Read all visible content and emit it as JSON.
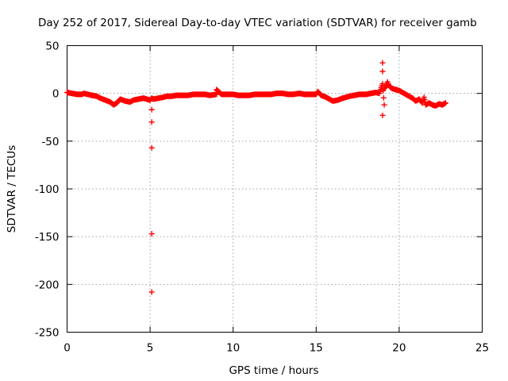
{
  "chart_data": {
    "type": "scatter",
    "title": "Day 252 of 2017, Sidereal Day-to-day VTEC variation (SDTVAR) for receiver gamb",
    "xlabel": "GPS time / hours",
    "ylabel": "SDTVAR / TECUs",
    "xlim": [
      0,
      25
    ],
    "ylim": [
      -250,
      50
    ],
    "xticks": [
      "0",
      "5",
      "10",
      "15",
      "20",
      "25"
    ],
    "yticks": [
      "50",
      "0",
      "-50",
      "-100",
      "-150",
      "-200",
      "-250"
    ],
    "grid": true,
    "series": [
      {
        "name": "SDTVAR",
        "color": "#ff0000",
        "marker": "plus",
        "x": [
          0.0,
          0.3,
          0.6,
          0.9,
          1.0,
          1.5,
          1.8,
          2.0,
          2.3,
          2.6,
          2.8,
          3.0,
          3.2,
          3.5,
          3.8,
          4.0,
          4.3,
          4.6,
          4.8,
          5.0,
          5.1,
          5.1,
          5.1,
          5.1,
          5.1,
          5.1,
          5.2,
          5.5,
          5.8,
          6.0,
          6.3,
          6.6,
          7.0,
          7.3,
          7.6,
          8.0,
          8.3,
          8.6,
          9.0,
          9.0,
          9.3,
          9.6,
          10.0,
          10.3,
          10.6,
          11.0,
          11.3,
          11.6,
          12.0,
          12.3,
          12.6,
          13.0,
          13.3,
          13.6,
          14.0,
          14.3,
          14.6,
          15.0,
          15.1,
          15.3,
          15.6,
          15.8,
          16.0,
          16.3,
          16.6,
          17.0,
          17.3,
          17.6,
          18.0,
          18.3,
          18.6,
          18.8,
          19.0,
          19.0,
          19.0,
          19.0,
          19.1,
          19.1,
          19.2,
          19.3,
          19.4,
          19.5,
          19.6,
          19.8,
          20.0,
          20.2,
          20.4,
          20.6,
          20.8,
          21.0,
          21.2,
          21.4,
          21.5,
          21.6,
          21.8,
          22.0,
          22.2,
          22.4,
          22.6,
          22.8
        ],
        "y": [
          1,
          0,
          -1,
          -1,
          0,
          -2,
          -3,
          -5,
          -7,
          -9,
          -12,
          -10,
          -6,
          -8,
          -9,
          -7,
          -6,
          -5,
          -6,
          -7,
          -5,
          -17,
          -30,
          -57,
          -147,
          -208,
          -6,
          -5,
          -4,
          -3,
          -3,
          -2,
          -2,
          -2,
          -1,
          -1,
          -1,
          -2,
          -1,
          4,
          -1,
          -1,
          -1,
          -2,
          -2,
          -2,
          -1,
          -1,
          -1,
          -1,
          0,
          0,
          -1,
          -1,
          0,
          -1,
          -1,
          -1,
          2,
          -2,
          -4,
          -6,
          -8,
          -7,
          -5,
          -3,
          -2,
          -1,
          -1,
          0,
          1,
          0,
          32,
          23,
          10,
          -23,
          -12,
          5,
          7,
          12,
          8,
          6,
          5,
          4,
          3,
          1,
          -1,
          -3,
          -5,
          -8,
          -6,
          -10,
          -4,
          -12,
          -10,
          -12,
          -13,
          -11,
          -12,
          -10
        ]
      }
    ]
  }
}
